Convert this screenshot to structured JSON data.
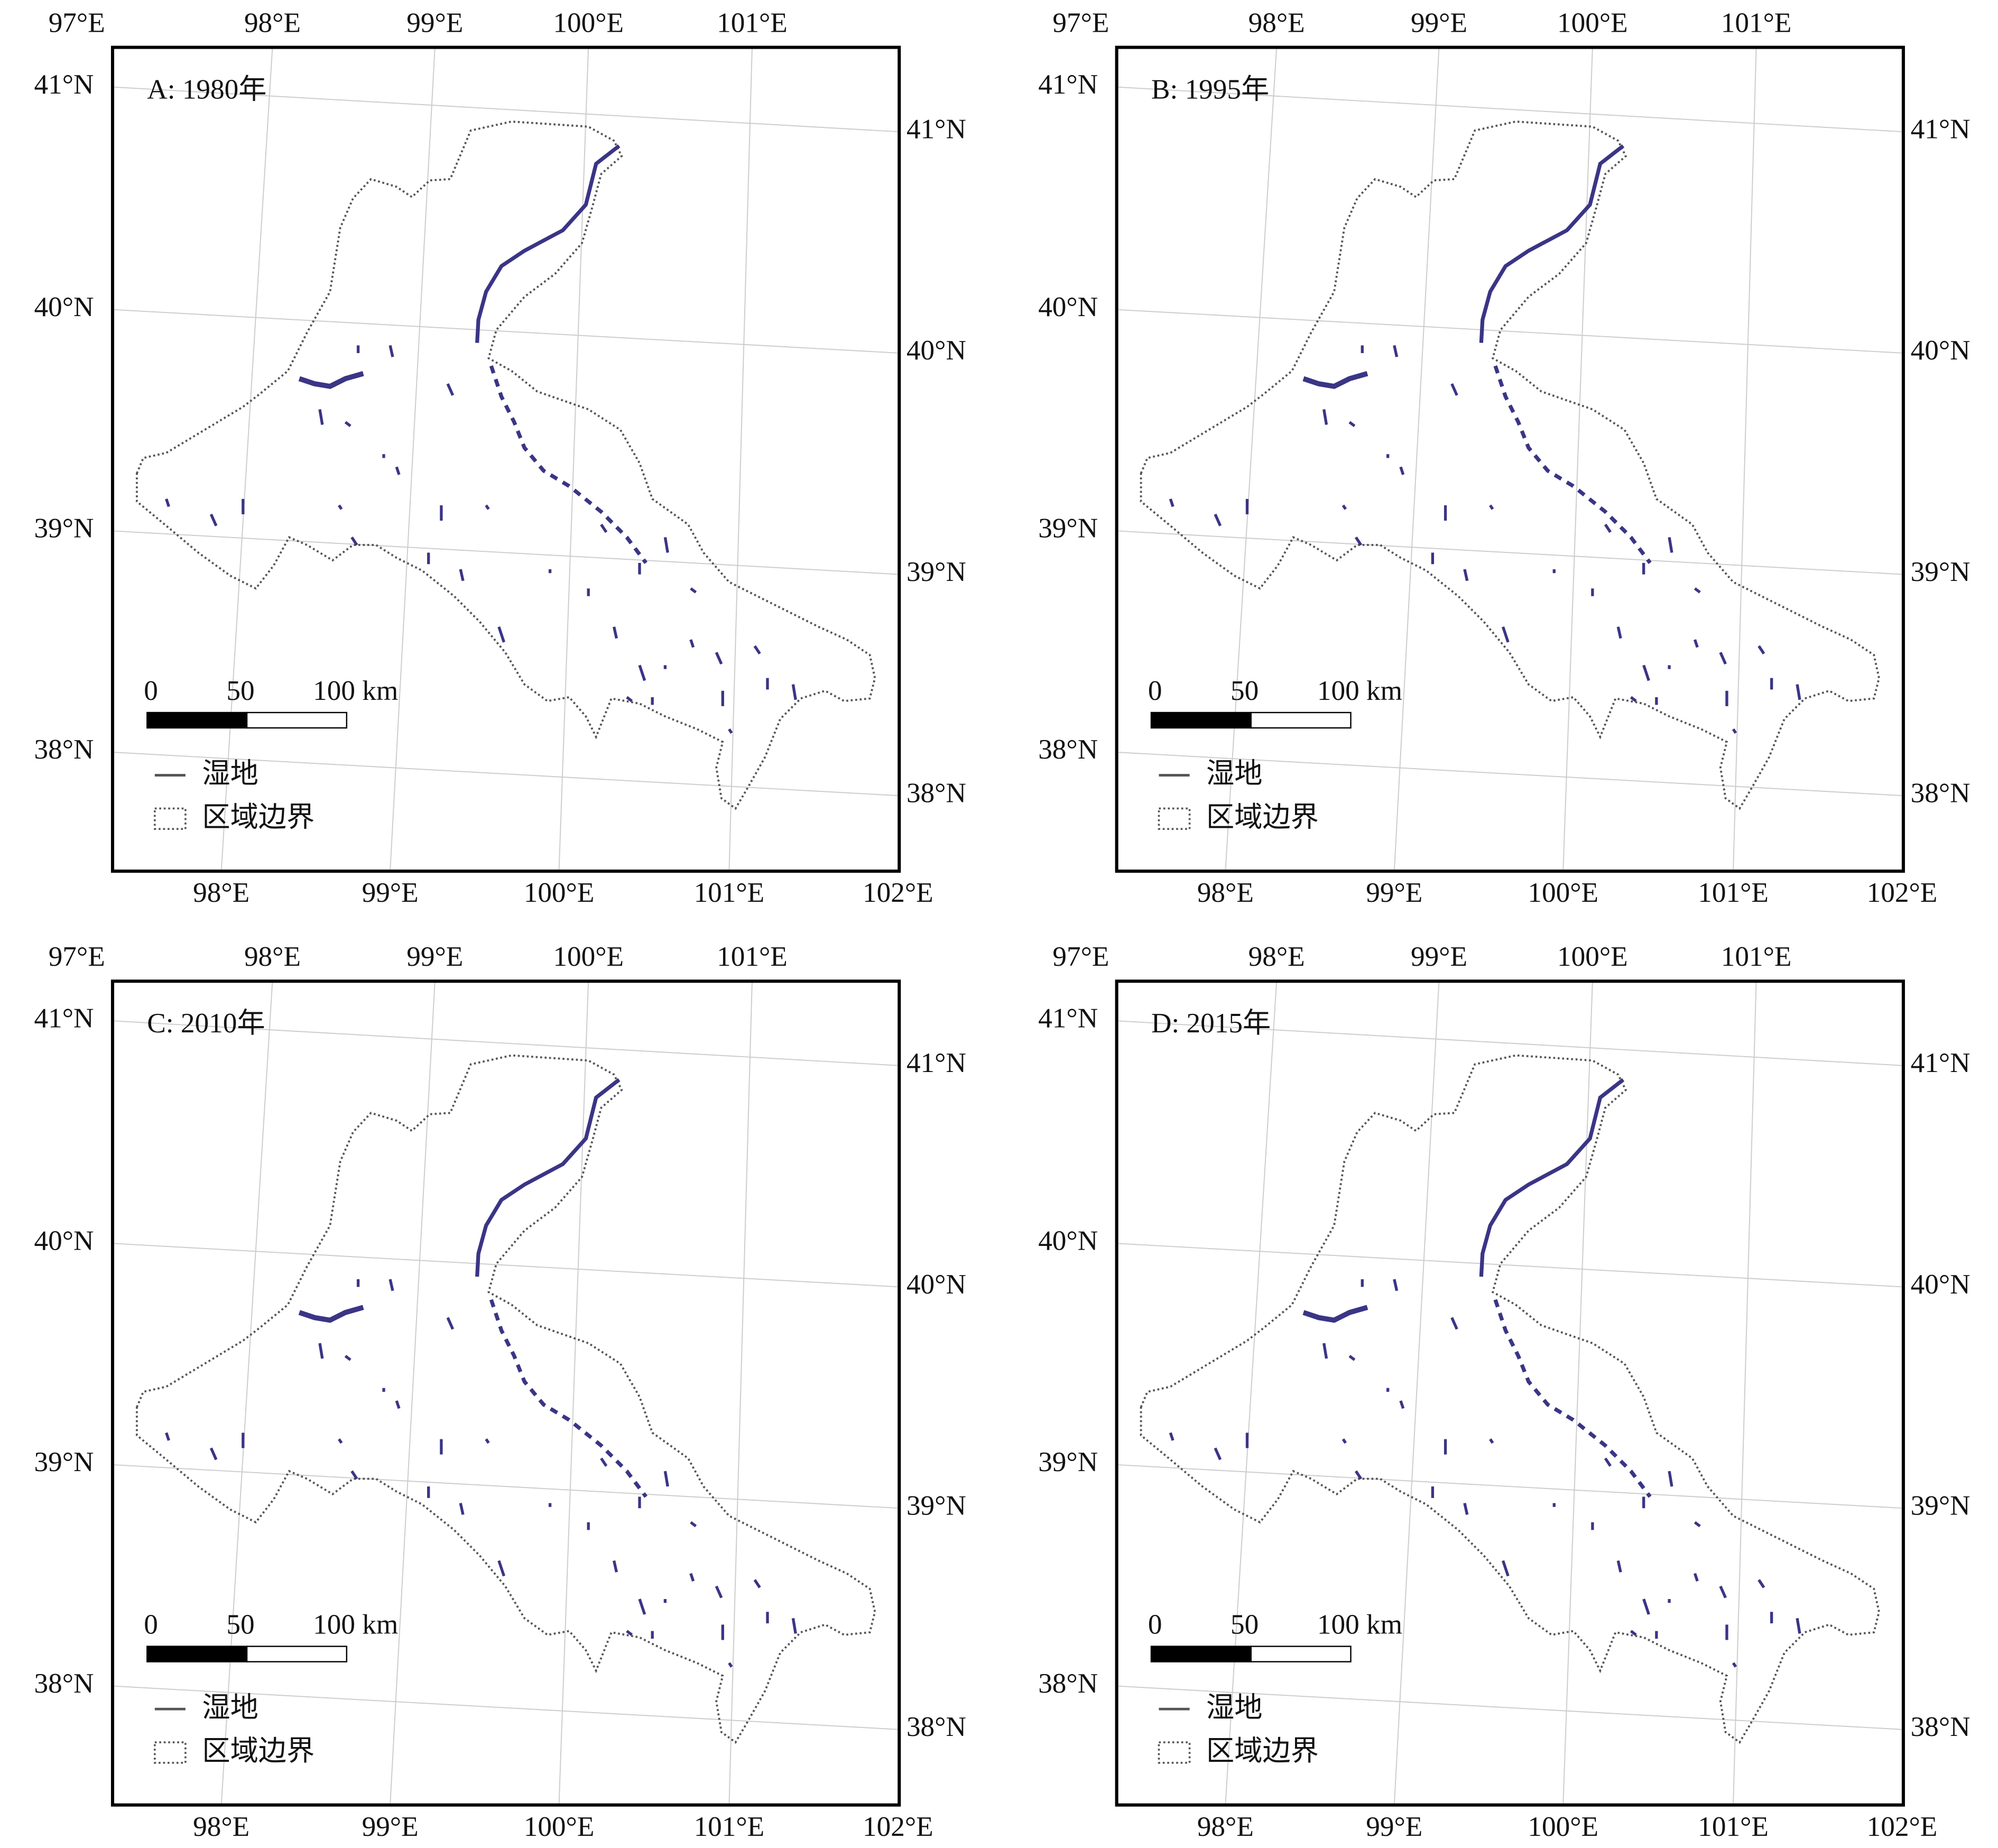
{
  "panels": [
    {
      "label": "A: 1980年"
    },
    {
      "label": "B: 1995年"
    },
    {
      "label": "C: 2010年"
    },
    {
      "label": "D: 2015年"
    }
  ],
  "axes": {
    "top": [
      "97°E",
      "98°E",
      "99°E",
      "100°E",
      "101°E"
    ],
    "bottom": [
      "98°E",
      "99°E",
      "100°E",
      "101°E",
      "102°E"
    ],
    "left": [
      "41°N",
      "40°N",
      "39°N",
      "38°N"
    ],
    "right": [
      "41°N",
      "40°N",
      "39°N",
      "38°N"
    ]
  },
  "scale_bar": {
    "labels": [
      "0",
      "50",
      "100 km"
    ]
  },
  "legend": {
    "items": [
      "湿地",
      "区域边界"
    ]
  }
}
